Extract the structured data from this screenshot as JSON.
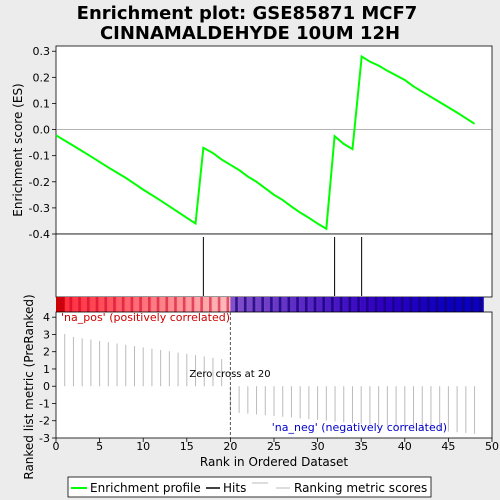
{
  "title_line1": "Enrichment plot: GSE85871 MCF7",
  "title_line2": "CINNAMALDEHYDE 10UM 12H",
  "chart_data": {
    "type": "line",
    "panels": {
      "es": {
        "ylabel": "Enrichment score (ES)",
        "ylim": [
          -0.4,
          0.32
        ],
        "yticks": [
          "0.3",
          "0.2",
          "0.1",
          "0.0",
          "-0.1",
          "-0.2",
          "-0.3",
          "-0.4"
        ],
        "ytick_values": [
          0.3,
          0.2,
          0.1,
          0.0,
          -0.1,
          -0.2,
          -0.3,
          -0.4
        ],
        "series": [
          {
            "name": "Enrichment profile",
            "color": "#00ff00",
            "x": [
              0,
              2,
              4,
              6,
              8,
              10,
              12,
              14,
              16,
              16.9,
              18,
              19,
              20,
              21,
              22,
              23,
              24,
              25,
              26,
              27,
              28,
              29,
              30,
              31,
              31.95,
              33,
              34,
              35,
              35.05,
              36,
              37,
              38,
              40,
              41,
              42,
              44,
              46,
              48
            ],
            "y": [
              -0.022,
              -0.062,
              -0.103,
              -0.145,
              -0.185,
              -0.23,
              -0.272,
              -0.316,
              -0.36,
              -0.07,
              -0.09,
              -0.115,
              -0.135,
              -0.155,
              -0.18,
              -0.2,
              -0.225,
              -0.25,
              -0.27,
              -0.295,
              -0.318,
              -0.338,
              -0.36,
              -0.38,
              -0.025,
              -0.055,
              -0.075,
              0.26,
              0.28,
              0.26,
              0.245,
              0.225,
              0.19,
              0.165,
              0.145,
              0.105,
              0.065,
              0.022
            ]
          }
        ],
        "hits": [
          16.9,
          31.95,
          35.05
        ]
      },
      "ranked": {
        "ylabel": "Ranked list metric (PreRanked)",
        "ylim": [
          -3,
          4.3
        ],
        "yticks": [
          "4",
          "3",
          "2",
          "1",
          "0",
          "-1",
          "-2",
          "-3"
        ],
        "ytick_values": [
          4,
          3,
          2,
          1,
          0,
          -1,
          -2,
          -3
        ],
        "zero_cross": 20,
        "zero_cross_label": "Zero cross at 20",
        "pos_label": "'na_pos' (positively correlated)",
        "neg_label": "'na_neg' (negatively correlated)"
      }
    },
    "xlabel": "Rank in Ordered Dataset",
    "xlim": [
      0,
      50
    ],
    "xticks": [
      "0",
      "5",
      "10",
      "15",
      "20",
      "25",
      "30",
      "35",
      "40",
      "45",
      "50"
    ],
    "xtick_values": [
      0,
      5,
      10,
      15,
      20,
      25,
      30,
      35,
      40,
      45,
      50
    ],
    "legend": {
      "placement": "bottom",
      "items": [
        {
          "label": "Enrichment profile",
          "color": "#00ff00"
        },
        {
          "label": "Hits",
          "color": "#000000"
        },
        {
          "label": "Ranking metric scores",
          "color": "#bbbbbb"
        }
      ]
    },
    "colors": {
      "enrichment": "#00ff00",
      "pos_label": "#cc0000",
      "neg_label": "#0000cc",
      "metric": "#bbbbbb"
    }
  }
}
